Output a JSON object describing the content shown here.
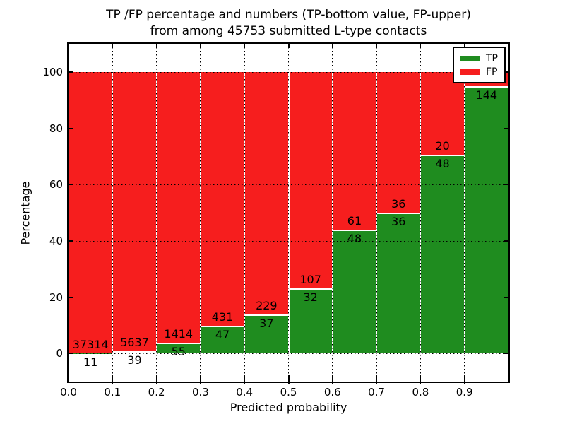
{
  "chart_data": {
    "type": "bar",
    "stacked": true,
    "title_line1": "TP /FP percentage and numbers (TP-bottom value, FP-upper)",
    "title_line2": "from among 45753 submitted L-type contacts",
    "title": "TP /FP percentage and numbers (TP-bottom value, FP-upper)\nfrom among 45753 submitted L-type contacts",
    "xlabel": "Predicted probability",
    "ylabel": "Percentage",
    "total_submitted": 45753,
    "bin_starts": [
      0.0,
      0.1,
      0.2,
      0.3,
      0.4,
      0.5,
      0.6,
      0.7,
      0.8,
      0.9
    ],
    "bin_width": 0.1,
    "series": [
      {
        "name": "TP",
        "color": "#1f8c1f",
        "counts": [
          11,
          39,
          55,
          47,
          37,
          32,
          48,
          36,
          48,
          144
        ],
        "percent": [
          0.03,
          0.69,
          3.74,
          9.83,
          13.91,
          23.02,
          44.04,
          50.0,
          70.59,
          95.0
        ]
      },
      {
        "name": "FP",
        "color": "#f61e1e",
        "counts": [
          37314,
          5637,
          1414,
          431,
          229,
          107,
          61,
          36,
          20,
          null
        ],
        "percent": [
          99.97,
          99.31,
          96.26,
          90.17,
          86.09,
          76.98,
          55.96,
          50.0,
          29.41,
          5.0
        ]
      }
    ],
    "xtick_labels": [
      "0.0",
      "0.1",
      "0.2",
      "0.3",
      "0.4",
      "0.5",
      "0.6",
      "0.7",
      "0.8",
      "0.9"
    ],
    "ytick_values": [
      0,
      20,
      40,
      60,
      80,
      100
    ],
    "xlim": [
      0.0,
      1.0
    ],
    "ylim": [
      -10,
      110
    ],
    "grid": true,
    "grid_style": "dotted",
    "legend": {
      "position": "upper right",
      "entries": [
        {
          "label": "TP",
          "color": "#1f8c1f"
        },
        {
          "label": "FP",
          "color": "#f61e1e"
        }
      ]
    }
  }
}
